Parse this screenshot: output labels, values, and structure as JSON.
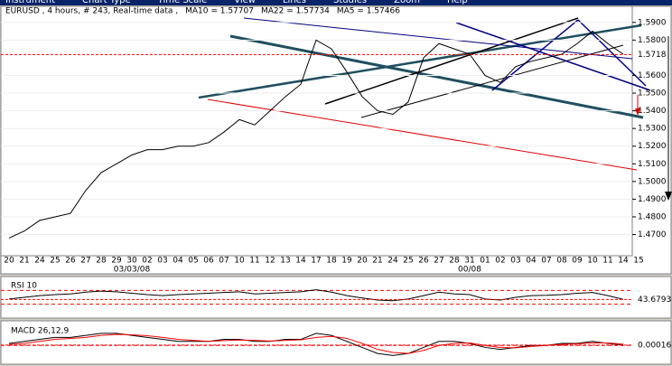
{
  "menu": [
    "Instrument",
    "Chart Type",
    "Time Scale",
    "View",
    "Lines",
    "Studies",
    "Zoom",
    "Help"
  ],
  "header": {
    "symbol": "EURUSD , 4 hours, # 243, Real-time data ,",
    "ma10": "MA10 = 1.57707",
    "ma22": "MA22 = 1.57734",
    "ma5": "MA5 = 1.57466"
  },
  "chart_data": [
    {
      "type": "line",
      "grid": true,
      "categories": [
        "20",
        "21",
        "24",
        "25",
        "26",
        "27",
        "28",
        "29",
        "30",
        "02",
        "03",
        "04",
        "05",
        "06",
        "07",
        "10",
        "11",
        "12",
        "13",
        "14",
        "17",
        "18",
        "19",
        "20",
        "21",
        "24",
        "25",
        "26",
        "27",
        "28",
        "31",
        "01",
        "02",
        "03",
        "04",
        "07",
        "08",
        "09",
        "10",
        "11",
        "14",
        "15"
      ],
      "x_group_labels": [
        "03/03/08",
        "00/08"
      ],
      "series": [
        {
          "color": "#000000",
          "values": [
            1.468,
            1.472,
            1.478,
            1.48,
            1.482,
            1.495,
            1.505,
            1.51,
            1.515,
            1.518,
            1.518,
            1.52,
            1.52,
            1.522,
            1.528,
            1.535,
            1.532,
            1.54,
            1.548,
            1.555,
            1.58,
            1.575,
            1.562,
            1.548,
            1.54,
            1.538,
            1.545,
            1.57,
            1.578,
            1.575,
            1.572,
            1.56,
            1.556,
            1.565,
            1.568,
            1.57,
            1.572,
            1.578,
            1.585,
            1.578,
            1.572,
            null
          ]
        }
      ],
      "last_value": 1.5718,
      "last_color": "#ff0000",
      "ylim": [
        1.458,
        1.595
      ],
      "yticks": [
        {
          "value": 1.47,
          "label": "1.4700"
        },
        {
          "value": 1.48,
          "label": "1.4800"
        },
        {
          "value": 1.49,
          "label": "1.4900"
        },
        {
          "value": 1.5,
          "label": "1.5000"
        },
        {
          "value": 1.51,
          "label": "1.5100"
        },
        {
          "value": 1.52,
          "label": "1.5200"
        },
        {
          "value": 1.53,
          "label": "1.5300"
        },
        {
          "value": 1.54,
          "label": "1.5400"
        },
        {
          "value": 1.55,
          "label": "1.5500"
        },
        {
          "value": 1.56,
          "label": "1.5600"
        },
        {
          "value": 1.58,
          "label": "1.5800"
        },
        {
          "value": 1.59,
          "label": "1.5900"
        }
      ]
    },
    {
      "type": "line",
      "title": "RSI 10",
      "series": [
        {
          "color": "#000000",
          "values": [
            45,
            50,
            55,
            58,
            60,
            65,
            68,
            66,
            62,
            58,
            55,
            58,
            60,
            62,
            64,
            66,
            60,
            62,
            64,
            66,
            72,
            65,
            55,
            48,
            42,
            40,
            45,
            55,
            65,
            60,
            58,
            45,
            42,
            50,
            55,
            56,
            58,
            62,
            64,
            55,
            44,
            null
          ]
        }
      ],
      "last_value": 43.6793,
      "last_color": "#ff0000",
      "levels": [
        30,
        70
      ],
      "level_color": "#ff0000",
      "ylim": [
        0,
        100
      ]
    },
    {
      "type": "line",
      "title": "MACD 26,12,9",
      "series": [
        {
          "color": "#000000",
          "values": [
            0.001,
            0.002,
            0.003,
            0.004,
            0.004,
            0.005,
            0.006,
            0.006,
            0.005,
            0.004,
            0.003,
            0.002,
            0.002,
            0.002,
            0.003,
            0.003,
            0.002,
            0.002,
            0.003,
            0.003,
            0.006,
            0.005,
            0.002,
            -0.001,
            -0.004,
            -0.005,
            -0.004,
            -0.001,
            0.002,
            0.002,
            0.001,
            -0.001,
            -0.002,
            -0.001,
            0.0,
            0.0,
            0.001,
            0.001,
            0.002,
            0.001,
            0.0002,
            null
          ]
        },
        {
          "color": "#ff0000",
          "values": [
            0.0005,
            0.001,
            0.002,
            0.003,
            0.0035,
            0.004,
            0.005,
            0.0055,
            0.0053,
            0.0048,
            0.004,
            0.003,
            0.0025,
            0.002,
            0.0024,
            0.0027,
            0.0025,
            0.0022,
            0.0025,
            0.0028,
            0.004,
            0.0045,
            0.0035,
            0.001,
            -0.002,
            -0.0035,
            -0.004,
            -0.0025,
            0.0,
            0.001,
            0.0012,
            0.0,
            -0.001,
            -0.0012,
            -0.0005,
            0.0,
            0.0005,
            0.0008,
            0.0013,
            0.0012,
            0.0006,
            null
          ]
        }
      ],
      "last_value": 0.00016,
      "last_color": "#ff0000",
      "levels": [
        0
      ],
      "level_color": "#ff0000",
      "ylim": [
        -0.008,
        0.01
      ]
    }
  ]
}
